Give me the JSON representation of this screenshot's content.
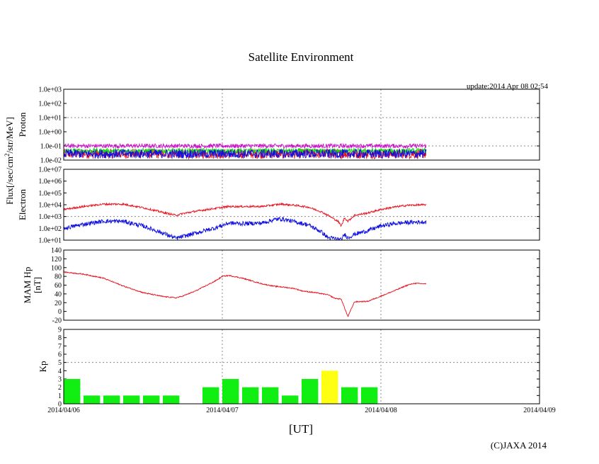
{
  "chart_data": {
    "title": "Satellite Environment",
    "update_text": "update:2014 Apr 08 02:54",
    "copyright": "(C)JAXA 2014",
    "xlabel": "[UT]",
    "x_range_hours": [
      0,
      72
    ],
    "data_end_hours": 54.9,
    "x_ticks": [
      {
        "hour": 0,
        "label": "2014/04/06"
      },
      {
        "hour": 24,
        "label": "2014/04/07"
      },
      {
        "hour": 48,
        "label": "2014/04/08"
      },
      {
        "hour": 72,
        "label": "2014/04/09"
      }
    ],
    "flux_ylabel_line1": "Flux[/sec/cm",
    "flux_ylabel_sup": "2",
    "flux_ylabel_line2": "/str/MeV]",
    "panels": [
      {
        "id": "proton",
        "type": "line",
        "ylabel": "Proton",
        "scale": "log",
        "ylim": [
          -2,
          3
        ],
        "tick_labels": [
          "1.0e+03",
          "1.0e+02",
          "1.0e+01",
          "1.0e+00",
          "1.0e-01",
          "1.0e-02"
        ],
        "hgrid_values": [
          1,
          -1
        ],
        "series": [
          {
            "name": "proton-red",
            "color": "#e8111e",
            "x": [
              0,
              54.9
            ],
            "y": [
              -1.55,
              -1.55
            ],
            "noise": 0.35
          },
          {
            "name": "proton-magenta",
            "color": "#cc11cc",
            "x": [
              0,
              54.9
            ],
            "y": [
              -1.0,
              -1.0
            ],
            "noise": 0.15
          },
          {
            "name": "proton-green",
            "color": "#11dd11",
            "x": [
              0,
              54.9
            ],
            "y": [
              -1.35,
              -1.35
            ],
            "noise": 0.18
          },
          {
            "name": "proton-blue",
            "color": "#1111dd",
            "x": [
              0,
              54.9
            ],
            "y": [
              -1.55,
              -1.55
            ],
            "noise": 0.32
          }
        ]
      },
      {
        "id": "electron",
        "type": "line",
        "ylabel": "Electron",
        "scale": "log",
        "ylim": [
          1,
          7
        ],
        "tick_labels": [
          "1.0e+07",
          "1.0e+06",
          "1.0e+05",
          "1.0e+04",
          "1.0e+03",
          "1.0e+02",
          "1.0e+01"
        ],
        "hgrid_values": [
          3
        ],
        "series": [
          {
            "name": "electron-high",
            "color": "#e8111e",
            "noise": 0.08,
            "x": [
              0,
              3,
              6,
              9,
              12,
              15,
              17,
              18,
              20,
              23,
              25,
              27,
              30,
              32,
              33,
              35,
              37,
              39,
              40,
              41.5,
              42,
              42.5,
              43,
              44,
              46,
              48,
              50,
              52,
              54.9
            ],
            "y": [
              3.6,
              3.85,
              4.05,
              4.05,
              3.75,
              3.35,
              3.1,
              3.25,
              3.45,
              3.7,
              3.85,
              3.85,
              3.85,
              4.0,
              4.05,
              3.95,
              3.8,
              3.4,
              3.1,
              2.6,
              2.2,
              2.9,
              2.6,
              3.1,
              3.3,
              3.6,
              3.8,
              3.95,
              4.0
            ]
          },
          {
            "name": "electron-low",
            "color": "#1111dd",
            "noise": 0.18,
            "x": [
              0,
              3,
              6,
              9,
              12,
              15,
              17,
              18,
              20,
              23,
              25,
              27,
              30,
              32,
              33,
              35,
              37,
              39,
              40,
              41.5,
              42,
              42.5,
              43,
              44,
              46,
              48,
              50,
              52,
              54.9
            ],
            "y": [
              2.0,
              2.35,
              2.6,
              2.6,
              2.2,
              1.6,
              1.15,
              1.3,
              1.6,
              2.05,
              2.45,
              2.4,
              2.45,
              2.75,
              2.8,
              2.55,
              2.3,
              1.7,
              1.2,
              1.1,
              1.0,
              1.5,
              1.2,
              1.5,
              1.8,
              2.2,
              2.4,
              2.5,
              2.55
            ]
          }
        ]
      },
      {
        "id": "mam",
        "type": "line",
        "ylabel_line1": "MAM Hp",
        "ylabel_line2": "[nT]",
        "scale": "linear",
        "ylim": [
          -20,
          140
        ],
        "tick_labels": [
          "140",
          "120",
          "100",
          "80",
          "60",
          "40",
          "20",
          "0",
          "-20"
        ],
        "hgrid_values": [],
        "series": [
          {
            "name": "mam-hp",
            "color": "#e8111e",
            "noise": 1.2,
            "x": [
              0,
              3,
              6,
              9,
              12,
              15,
              17,
              18,
              20,
              23,
              24,
              25,
              27,
              30,
              32,
              33,
              35,
              36,
              38,
              40,
              41,
              42,
              42.5,
              43,
              44,
              46,
              48,
              50,
              52,
              53,
              54.9
            ],
            "y": [
              90,
              85,
              76,
              58,
              43,
              34,
              31,
              35,
              47,
              70,
              80,
              82,
              76,
              63,
              57,
              56,
              52,
              47,
              43,
              38,
              30,
              28,
              8,
              -12,
              22,
              23,
              35,
              47,
              60,
              64,
              63
            ]
          }
        ]
      },
      {
        "id": "kp",
        "type": "bar",
        "ylabel": "Kp",
        "scale": "linear",
        "ylim": [
          0,
          9
        ],
        "tick_labels": [
          "9",
          "8",
          "7",
          "6",
          "5",
          "4",
          "3",
          "2",
          "1",
          "0"
        ],
        "hgrid_values": [
          5
        ],
        "bar_width_hours": 2.5,
        "bars": [
          {
            "start": 0,
            "value": 3,
            "color": "#11ee11"
          },
          {
            "start": 3,
            "value": 1,
            "color": "#11ee11"
          },
          {
            "start": 6,
            "value": 1,
            "color": "#11ee11"
          },
          {
            "start": 9,
            "value": 1,
            "color": "#11ee11"
          },
          {
            "start": 12,
            "value": 1,
            "color": "#11ee11"
          },
          {
            "start": 15,
            "value": 1,
            "color": "#11ee11"
          },
          {
            "start": 21,
            "value": 2,
            "color": "#11ee11"
          },
          {
            "start": 24,
            "value": 3,
            "color": "#11ee11"
          },
          {
            "start": 27,
            "value": 2,
            "color": "#11ee11"
          },
          {
            "start": 30,
            "value": 2,
            "color": "#11ee11"
          },
          {
            "start": 33,
            "value": 1,
            "color": "#11ee11"
          },
          {
            "start": 36,
            "value": 3,
            "color": "#11ee11"
          },
          {
            "start": 39,
            "value": 4,
            "color": "#ffff11"
          },
          {
            "start": 42,
            "value": 2,
            "color": "#11ee11"
          },
          {
            "start": 45,
            "value": 2,
            "color": "#11ee11"
          }
        ]
      }
    ]
  }
}
